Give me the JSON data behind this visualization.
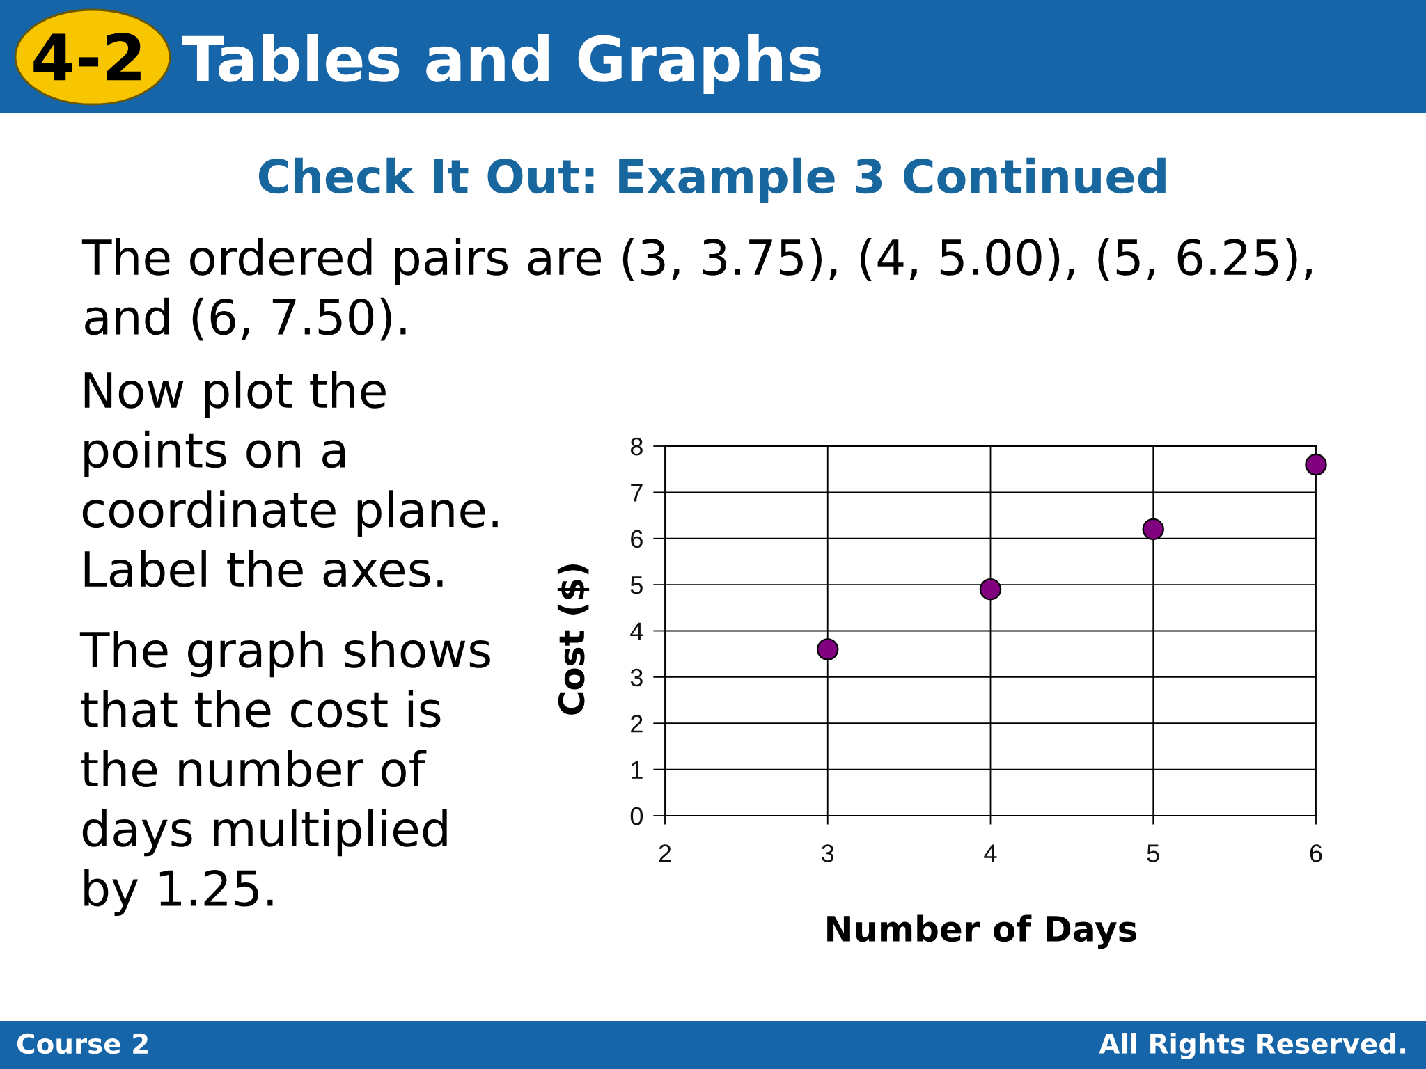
{
  "chart_data": {
    "type": "scatter",
    "title": "Tables and Graphs",
    "subtitle": "Check It Out: Example 3 Continued",
    "xlabel": "Number of Days",
    "ylabel": "Cost ($)",
    "x": [
      3,
      4,
      5,
      6
    ],
    "values": [
      3.6,
      4.9,
      6.2,
      7.6
    ],
    "color": "#800080",
    "marker": "circle",
    "xlim": [
      2,
      6
    ],
    "xticks": [
      2,
      3,
      4,
      5,
      6
    ],
    "ylim": [
      0,
      8
    ],
    "yticks": [
      0,
      1,
      2,
      3,
      4,
      5,
      6,
      7,
      8
    ],
    "grid": true,
    "annotations": [
      "4-2",
      "The ordered pairs are (3, 3.75), (4, 5.00), (5, 6.25), and (6, 7.50).",
      "Now plot the points on a coordinate plane. Label the axes.",
      "The graph shows that the cost is the number of days multiplied by 1.25.",
      "Course 2",
      "All Rights Reserved."
    ]
  }
}
